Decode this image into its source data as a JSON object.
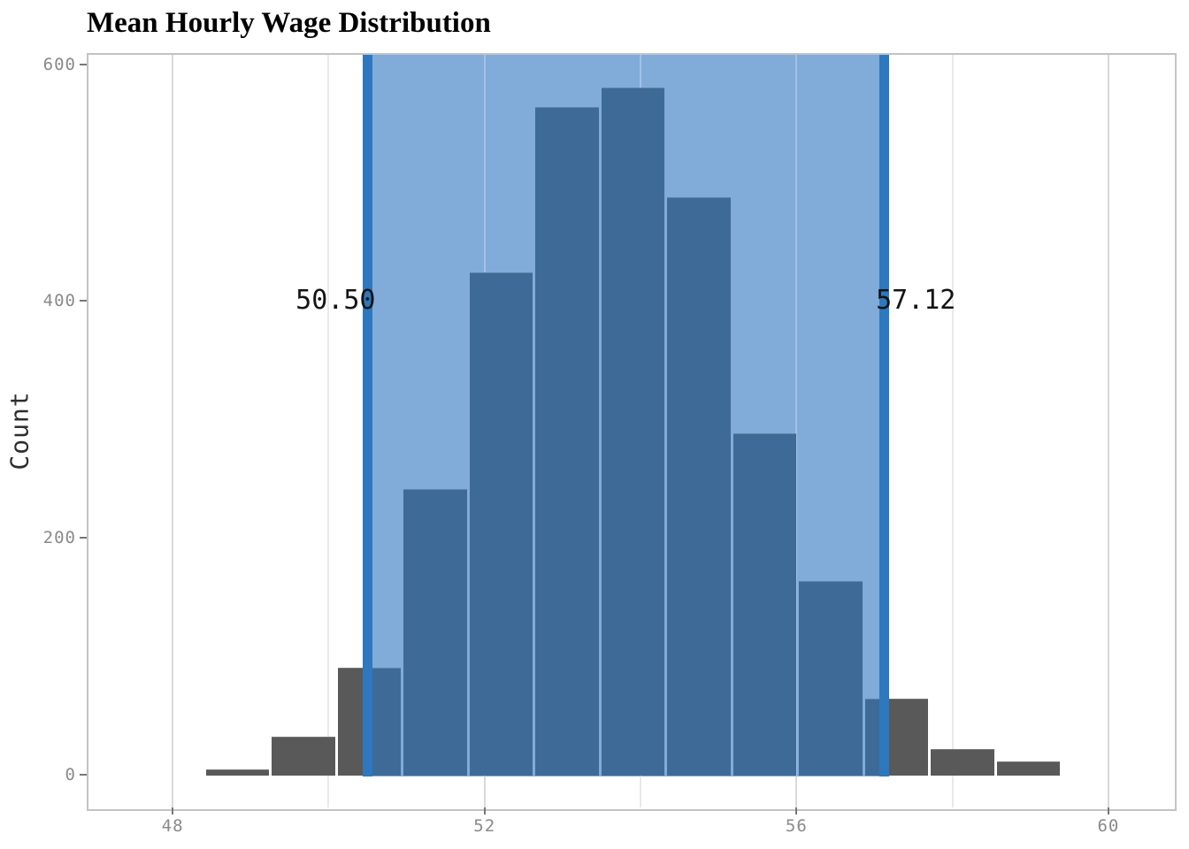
{
  "figure": {
    "title": "Mean Hourly Wage Distribution",
    "y_axis_label": "Count"
  },
  "chart_data": {
    "type": "histogram",
    "title": "Mean Hourly Wage Distribution",
    "xlabel": "",
    "ylabel": "Count",
    "bin_edges": [
      48.41,
      49.25,
      50.1,
      50.94,
      51.79,
      52.63,
      53.48,
      54.32,
      55.17,
      56.01,
      56.86,
      57.7,
      58.55,
      59.39
    ],
    "counts": [
      4,
      32,
      90,
      241,
      424,
      564,
      580,
      488,
      288,
      163,
      64,
      21,
      11
    ],
    "x_ticks": [
      {
        "value": 48,
        "label": "48"
      },
      {
        "value": 52,
        "label": "52"
      },
      {
        "value": 56,
        "label": "56"
      },
      {
        "value": 60,
        "label": "60"
      }
    ],
    "x_minor_gridlines": [
      50,
      54,
      58
    ],
    "y_ticks": [
      {
        "value": 0,
        "label": "0"
      },
      {
        "value": 200,
        "label": "200"
      },
      {
        "value": 400,
        "label": "400"
      },
      {
        "value": 600,
        "label": "600"
      }
    ],
    "xlim": [
      46.91,
      60.84
    ],
    "ylim": [
      -28,
      608
    ],
    "grid": "vertical-only",
    "legend": "none",
    "confidence_interval": {
      "lower": 50.5,
      "upper": 57.12,
      "lower_label": "50.50",
      "upper_label": "57.12"
    },
    "colors": {
      "bar_outside_interval": "#595959",
      "bar_inside_interval": "#3e6a97",
      "interval_fill": "#81abd9",
      "interval_boundary_line": "#2d78be",
      "grid_major": "#d9d9d9",
      "grid_minor": "#e9e9e9",
      "panel_border": "#c3c3c3",
      "tick_mark": "#777777",
      "tick_label": "#8a8a8a",
      "annotation_text": "#141414",
      "title_text": "#000000",
      "axis_label_text": "#2d2d2d",
      "background": "#ffffff"
    }
  }
}
